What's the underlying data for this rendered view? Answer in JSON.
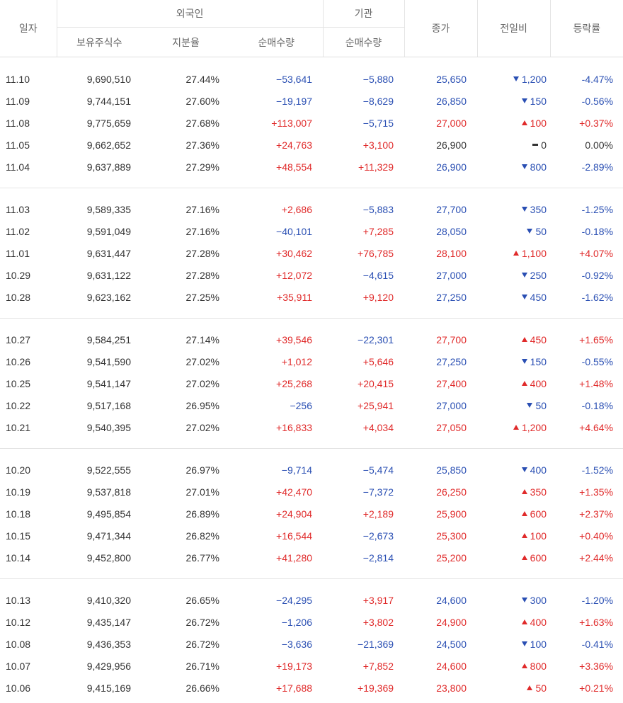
{
  "header": {
    "date": "일자",
    "foreign": "외국인",
    "institution": "기관",
    "close": "종가",
    "diff": "전일비",
    "rate": "등락률",
    "holdings": "보유주식수",
    "ratio": "지분율",
    "foreign_net": "순매수량",
    "inst_net": "순매수량"
  },
  "groups": [
    {
      "rows": [
        {
          "date": "11.10",
          "hold": "9,690,510",
          "ratio": "27.44%",
          "fnet": "−53,641",
          "inet": "−5,880",
          "close": "25,650",
          "dir": "down",
          "diff": "1,200",
          "rate": "-4.47%"
        },
        {
          "date": "11.09",
          "hold": "9,744,151",
          "ratio": "27.60%",
          "fnet": "−19,197",
          "inet": "−8,629",
          "close": "26,850",
          "dir": "down",
          "diff": "150",
          "rate": "-0.56%"
        },
        {
          "date": "11.08",
          "hold": "9,775,659",
          "ratio": "27.68%",
          "fnet": "+113,007",
          "inet": "−5,715",
          "close": "27,000",
          "dir": "up",
          "diff": "100",
          "rate": "+0.37%"
        },
        {
          "date": "11.05",
          "hold": "9,662,652",
          "ratio": "27.36%",
          "fnet": "+24,763",
          "inet": "+3,100",
          "close": "26,900",
          "dir": "flat",
          "diff": "0",
          "rate": "0.00%"
        },
        {
          "date": "11.04",
          "hold": "9,637,889",
          "ratio": "27.29%",
          "fnet": "+48,554",
          "inet": "+11,329",
          "close": "26,900",
          "dir": "down",
          "diff": "800",
          "rate": "-2.89%"
        }
      ]
    },
    {
      "rows": [
        {
          "date": "11.03",
          "hold": "9,589,335",
          "ratio": "27.16%",
          "fnet": "+2,686",
          "inet": "−5,883",
          "close": "27,700",
          "dir": "down",
          "diff": "350",
          "rate": "-1.25%"
        },
        {
          "date": "11.02",
          "hold": "9,591,049",
          "ratio": "27.16%",
          "fnet": "−40,101",
          "inet": "+7,285",
          "close": "28,050",
          "dir": "down",
          "diff": "50",
          "rate": "-0.18%"
        },
        {
          "date": "11.01",
          "hold": "9,631,447",
          "ratio": "27.28%",
          "fnet": "+30,462",
          "inet": "+76,785",
          "close": "28,100",
          "dir": "up",
          "diff": "1,100",
          "rate": "+4.07%"
        },
        {
          "date": "10.29",
          "hold": "9,631,122",
          "ratio": "27.28%",
          "fnet": "+12,072",
          "inet": "−4,615",
          "close": "27,000",
          "dir": "down",
          "diff": "250",
          "rate": "-0.92%"
        },
        {
          "date": "10.28",
          "hold": "9,623,162",
          "ratio": "27.25%",
          "fnet": "+35,911",
          "inet": "+9,120",
          "close": "27,250",
          "dir": "down",
          "diff": "450",
          "rate": "-1.62%"
        }
      ]
    },
    {
      "rows": [
        {
          "date": "10.27",
          "hold": "9,584,251",
          "ratio": "27.14%",
          "fnet": "+39,546",
          "inet": "−22,301",
          "close": "27,700",
          "dir": "up",
          "diff": "450",
          "rate": "+1.65%"
        },
        {
          "date": "10.26",
          "hold": "9,541,590",
          "ratio": "27.02%",
          "fnet": "+1,012",
          "inet": "+5,646",
          "close": "27,250",
          "dir": "down",
          "diff": "150",
          "rate": "-0.55%"
        },
        {
          "date": "10.25",
          "hold": "9,541,147",
          "ratio": "27.02%",
          "fnet": "+25,268",
          "inet": "+20,415",
          "close": "27,400",
          "dir": "up",
          "diff": "400",
          "rate": "+1.48%"
        },
        {
          "date": "10.22",
          "hold": "9,517,168",
          "ratio": "26.95%",
          "fnet": "−256",
          "inet": "+25,941",
          "close": "27,000",
          "dir": "down",
          "diff": "50",
          "rate": "-0.18%"
        },
        {
          "date": "10.21",
          "hold": "9,540,395",
          "ratio": "27.02%",
          "fnet": "+16,833",
          "inet": "+4,034",
          "close": "27,050",
          "dir": "up",
          "diff": "1,200",
          "rate": "+4.64%"
        }
      ]
    },
    {
      "rows": [
        {
          "date": "10.20",
          "hold": "9,522,555",
          "ratio": "26.97%",
          "fnet": "−9,714",
          "inet": "−5,474",
          "close": "25,850",
          "dir": "down",
          "diff": "400",
          "rate": "-1.52%"
        },
        {
          "date": "10.19",
          "hold": "9,537,818",
          "ratio": "27.01%",
          "fnet": "+42,470",
          "inet": "−7,372",
          "close": "26,250",
          "dir": "up",
          "diff": "350",
          "rate": "+1.35%"
        },
        {
          "date": "10.18",
          "hold": "9,495,854",
          "ratio": "26.89%",
          "fnet": "+24,904",
          "inet": "+2,189",
          "close": "25,900",
          "dir": "up",
          "diff": "600",
          "rate": "+2.37%"
        },
        {
          "date": "10.15",
          "hold": "9,471,344",
          "ratio": "26.82%",
          "fnet": "+16,544",
          "inet": "−2,673",
          "close": "25,300",
          "dir": "up",
          "diff": "100",
          "rate": "+0.40%"
        },
        {
          "date": "10.14",
          "hold": "9,452,800",
          "ratio": "26.77%",
          "fnet": "+41,280",
          "inet": "−2,814",
          "close": "25,200",
          "dir": "up",
          "diff": "600",
          "rate": "+2.44%"
        }
      ]
    },
    {
      "rows": [
        {
          "date": "10.13",
          "hold": "9,410,320",
          "ratio": "26.65%",
          "fnet": "−24,295",
          "inet": "+3,917",
          "close": "24,600",
          "dir": "down",
          "diff": "300",
          "rate": "-1.20%"
        },
        {
          "date": "10.12",
          "hold": "9,435,147",
          "ratio": "26.72%",
          "fnet": "−1,206",
          "inet": "+3,802",
          "close": "24,900",
          "dir": "up",
          "diff": "400",
          "rate": "+1.63%"
        },
        {
          "date": "10.08",
          "hold": "9,436,353",
          "ratio": "26.72%",
          "fnet": "−3,636",
          "inet": "−21,369",
          "close": "24,500",
          "dir": "down",
          "diff": "100",
          "rate": "-0.41%"
        },
        {
          "date": "10.07",
          "hold": "9,429,956",
          "ratio": "26.71%",
          "fnet": "+19,173",
          "inet": "+7,852",
          "close": "24,600",
          "dir": "up",
          "diff": "800",
          "rate": "+3.36%"
        },
        {
          "date": "10.06",
          "hold": "9,415,169",
          "ratio": "26.66%",
          "fnet": "+17,688",
          "inet": "+19,369",
          "close": "23,800",
          "dir": "up",
          "diff": "50",
          "rate": "+0.21%"
        }
      ]
    }
  ],
  "colors": {
    "up": "#e02a2a",
    "down": "#2a4fb3",
    "flat": "#333333"
  }
}
